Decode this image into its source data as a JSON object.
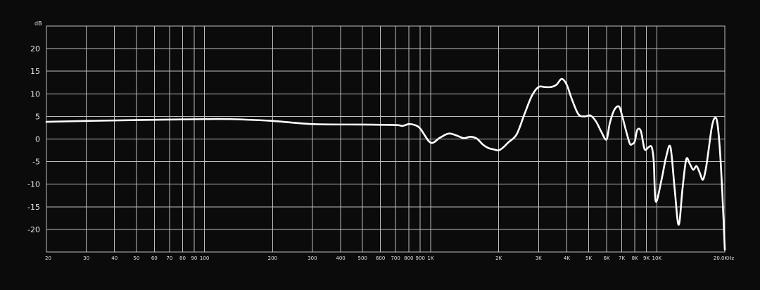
{
  "chart_data": {
    "type": "line",
    "xscale": "log",
    "xlim": [
      20,
      20000
    ],
    "ylim": [
      -25,
      25
    ],
    "ylabel": "dB",
    "grid": true,
    "colors": {
      "background": "#0b0b0b",
      "grid": "#bdbdbd",
      "line": "#ffffff",
      "text": "#e6e6e6"
    },
    "y_ticks": [
      {
        "value": 20,
        "label": "20"
      },
      {
        "value": 15,
        "label": "15"
      },
      {
        "value": 10,
        "label": "10"
      },
      {
        "value": 5,
        "label": "5"
      },
      {
        "value": 0,
        "label": "0"
      },
      {
        "value": -5,
        "label": "-5"
      },
      {
        "value": -10,
        "label": "-10"
      },
      {
        "value": -15,
        "label": "-15"
      },
      {
        "value": -20,
        "label": "-20"
      }
    ],
    "x_ticks": [
      {
        "value": 20,
        "label": "20"
      },
      {
        "value": 30,
        "label": "30"
      },
      {
        "value": 40,
        "label": "40"
      },
      {
        "value": 50,
        "label": "50"
      },
      {
        "value": 60,
        "label": "60"
      },
      {
        "value": 70,
        "label": "70"
      },
      {
        "value": 80,
        "label": "80"
      },
      {
        "value": 90,
        "label": "90"
      },
      {
        "value": 100,
        "label": "100"
      },
      {
        "value": 200,
        "label": "200"
      },
      {
        "value": 300,
        "label": "300"
      },
      {
        "value": 400,
        "label": "400"
      },
      {
        "value": 500,
        "label": "500"
      },
      {
        "value": 600,
        "label": "600"
      },
      {
        "value": 700,
        "label": "700"
      },
      {
        "value": 800,
        "label": "800"
      },
      {
        "value": 900,
        "label": "900"
      },
      {
        "value": 1000,
        "label": "1K"
      },
      {
        "value": 2000,
        "label": "2K"
      },
      {
        "value": 3000,
        "label": "3K"
      },
      {
        "value": 4000,
        "label": "4K"
      },
      {
        "value": 5000,
        "label": "5K"
      },
      {
        "value": 6000,
        "label": "6K"
      },
      {
        "value": 7000,
        "label": "7K"
      },
      {
        "value": 8000,
        "label": "8K"
      },
      {
        "value": 9000,
        "label": "9K"
      },
      {
        "value": 10000,
        "label": "10K"
      },
      {
        "value": 20000,
        "label": "20.0KHz"
      }
    ],
    "series": [
      {
        "x": [
          20,
          30,
          50,
          100,
          130,
          200,
          300,
          500,
          700,
          750,
          800,
          850,
          900,
          1000,
          1100,
          1200,
          1300,
          1400,
          1500,
          1600,
          1700,
          1800,
          1900,
          2000,
          2100,
          2200,
          2400,
          2600,
          2800,
          3000,
          3200,
          3400,
          3600,
          3800,
          4000,
          4200,
          4500,
          4800,
          5100,
          5400,
          5700,
          6000,
          6200,
          6500,
          6800,
          7000,
          7300,
          7600,
          7800,
          8000,
          8200,
          8500,
          8800,
          9000,
          9200,
          9500,
          9700,
          9900,
          10500,
          11000,
          11500,
          12000,
          12500,
          13000,
          13500,
          14000,
          14500,
          15000,
          15500,
          16000,
          16500,
          17000,
          17500,
          18000,
          18500,
          19000,
          19500,
          20000
        ],
        "y": [
          3.8,
          4.0,
          4.2,
          4.4,
          4.4,
          4.0,
          3.3,
          3.2,
          3.1,
          2.9,
          3.3,
          3.1,
          2.3,
          -0.8,
          0.3,
          1.2,
          0.8,
          0.2,
          0.5,
          0.1,
          -1.2,
          -2.0,
          -2.3,
          -2.5,
          -1.8,
          -0.8,
          1.0,
          5.5,
          9.5,
          11.5,
          11.5,
          11.5,
          12.0,
          13.3,
          12.0,
          9.0,
          5.5,
          5.0,
          5.2,
          3.8,
          1.5,
          -0.1,
          3.5,
          6.5,
          7.2,
          5.5,
          2.0,
          -1.0,
          -1.1,
          -0.5,
          2.0,
          1.8,
          -2.0,
          -2.3,
          -1.8,
          -1.8,
          -5.0,
          -13.8,
          -9.0,
          -4.0,
          -1.8,
          -11.0,
          -19.0,
          -11.0,
          -4.5,
          -5.5,
          -6.8,
          -6.0,
          -7.5,
          -9.0,
          -6.5,
          -2.0,
          2.5,
          4.6,
          3.8,
          -2.0,
          -12.0,
          -24.5
        ]
      }
    ]
  }
}
